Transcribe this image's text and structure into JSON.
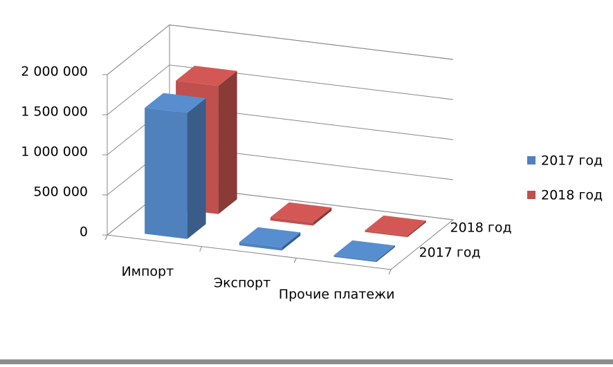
{
  "chart_data": {
    "type": "bar3d",
    "categories": [
      "Импорт",
      "Экспорт",
      "Прочие платежи"
    ],
    "series": [
      {
        "name": "2017 год",
        "color": "#4f81bd",
        "values": [
          1570000,
          40000,
          20000
        ]
      },
      {
        "name": "2018 год",
        "color": "#c0504d",
        "values": [
          1600000,
          40000,
          20000
        ]
      }
    ],
    "ylim": [
      0,
      2000000
    ],
    "yticks": [
      0,
      {
        "value": 500000,
        "label": "500 000"
      },
      {
        "value": 1000000,
        "label": "1 000 000"
      },
      {
        "value": 1500000,
        "label": "1 500 000"
      },
      {
        "value": 2000000,
        "label": "2 000 000"
      }
    ],
    "grid": true,
    "legend": "right"
  }
}
